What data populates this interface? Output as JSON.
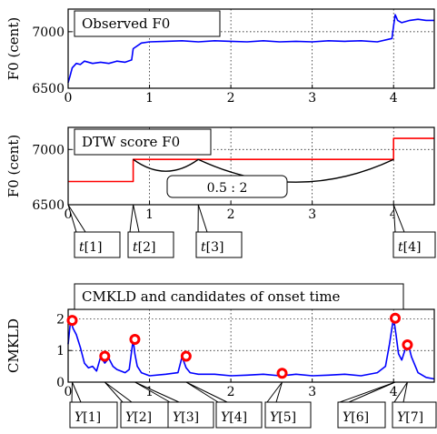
{
  "chart_data": [
    {
      "type": "line",
      "title": "Observed F0",
      "xlabel": "",
      "ylabel": "F0 (cent)",
      "xlim": [
        0,
        4.5
      ],
      "ylim": [
        6500,
        7200
      ],
      "xticks": [
        0,
        1,
        2,
        3,
        4
      ],
      "yticks": [
        6500,
        7000
      ],
      "grid": true,
      "line_color": "#0000ff",
      "series": [
        {
          "x": [
            0.0,
            0.02,
            0.05,
            0.1,
            0.15,
            0.2,
            0.3,
            0.4,
            0.5,
            0.6,
            0.7,
            0.78,
            0.8,
            0.9,
            1.0,
            1.2,
            1.4,
            1.6,
            1.8,
            2.0,
            2.2,
            2.4,
            2.6,
            2.8,
            3.0,
            3.2,
            3.4,
            3.6,
            3.8,
            3.98,
            4.0,
            4.02,
            4.05,
            4.1,
            4.2,
            4.3,
            4.4,
            4.5
          ],
          "y": [
            6550,
            6600,
            6680,
            6720,
            6710,
            6740,
            6720,
            6730,
            6720,
            6740,
            6730,
            6750,
            6850,
            6900,
            6910,
            6915,
            6920,
            6910,
            6920,
            6915,
            6910,
            6920,
            6910,
            6915,
            6910,
            6920,
            6915,
            6920,
            6910,
            6940,
            7050,
            7150,
            7100,
            7080,
            7100,
            7110,
            7100,
            7100
          ]
        }
      ]
    },
    {
      "type": "line",
      "title": "DTW score F0",
      "xlabel": "",
      "ylabel": "F0 (cent)",
      "xlim": [
        0,
        4.5
      ],
      "ylim": [
        6500,
        7200
      ],
      "xticks": [
        0,
        1,
        2,
        3,
        4
      ],
      "yticks": [
        6500,
        7000
      ],
      "grid": true,
      "line_color": "#ff0000",
      "series": [
        {
          "x": [
            0.0,
            0.8,
            0.8,
            4.0,
            4.0,
            4.5
          ],
          "y": [
            6710,
            6710,
            6910,
            6910,
            7100,
            7100
          ]
        }
      ],
      "annotation": "0.5 : 2",
      "markers": [
        {
          "label_var": "t",
          "label_idx": "[1]",
          "x": 0.0
        },
        {
          "label_var": "t",
          "label_idx": "[2]",
          "x": 0.8
        },
        {
          "label_var": "t",
          "label_idx": "[3]",
          "x": 1.6
        },
        {
          "label_var": "t",
          "label_idx": "[4]",
          "x": 4.0
        }
      ]
    },
    {
      "type": "line",
      "title": "CMKLD and candidates of onset time",
      "xlabel": "",
      "ylabel": "CMKLD",
      "xlim": [
        0,
        4.5
      ],
      "ylim": [
        0,
        2.3
      ],
      "xticks": [
        0,
        1,
        2,
        3,
        4
      ],
      "yticks": [
        0,
        1,
        2
      ],
      "grid": true,
      "line_color": "#0000ff",
      "series": [
        {
          "x": [
            0.0,
            0.03,
            0.06,
            0.1,
            0.15,
            0.2,
            0.25,
            0.3,
            0.35,
            0.4,
            0.45,
            0.5,
            0.55,
            0.6,
            0.7,
            0.75,
            0.8,
            0.82,
            0.85,
            0.9,
            1.0,
            1.2,
            1.35,
            1.4,
            1.45,
            1.5,
            1.6,
            1.8,
            2.0,
            2.2,
            2.4,
            2.6,
            2.65,
            2.7,
            2.8,
            3.0,
            3.2,
            3.4,
            3.6,
            3.8,
            3.9,
            3.95,
            4.0,
            4.03,
            4.06,
            4.1,
            4.15,
            4.18,
            4.22,
            4.3,
            4.4,
            4.5
          ],
          "y": [
            1.2,
            1.95,
            1.7,
            1.5,
            1.1,
            0.6,
            0.45,
            0.5,
            0.35,
            0.8,
            0.6,
            0.75,
            0.5,
            0.4,
            0.3,
            0.4,
            1.35,
            0.9,
            0.5,
            0.3,
            0.2,
            0.25,
            0.3,
            0.8,
            0.45,
            0.3,
            0.25,
            0.25,
            0.2,
            0.22,
            0.25,
            0.2,
            0.28,
            0.22,
            0.25,
            0.2,
            0.22,
            0.25,
            0.2,
            0.3,
            0.5,
            1.2,
            2.05,
            1.5,
            0.9,
            0.7,
            1.1,
            1.2,
            0.8,
            0.3,
            0.15,
            0.1
          ]
        }
      ],
      "onset_candidates": [
        {
          "label_var": "Y",
          "label_idx": "[1]",
          "x": 0.05,
          "y": 1.95
        },
        {
          "label_var": "Y",
          "label_idx": "[2]",
          "x": 0.45,
          "y": 0.82
        },
        {
          "label_var": "Y",
          "label_idx": "[3]",
          "x": 0.82,
          "y": 1.35
        },
        {
          "label_var": "Y",
          "label_idx": "[4]",
          "x": 1.45,
          "y": 0.82
        },
        {
          "label_var": "Y",
          "label_idx": "[5]",
          "x": 2.63,
          "y": 0.28
        },
        {
          "label_var": "Y",
          "label_idx": "[6]",
          "x": 4.02,
          "y": 2.02
        },
        {
          "label_var": "Y",
          "label_idx": "[7]",
          "x": 4.17,
          "y": 1.18
        }
      ]
    }
  ]
}
